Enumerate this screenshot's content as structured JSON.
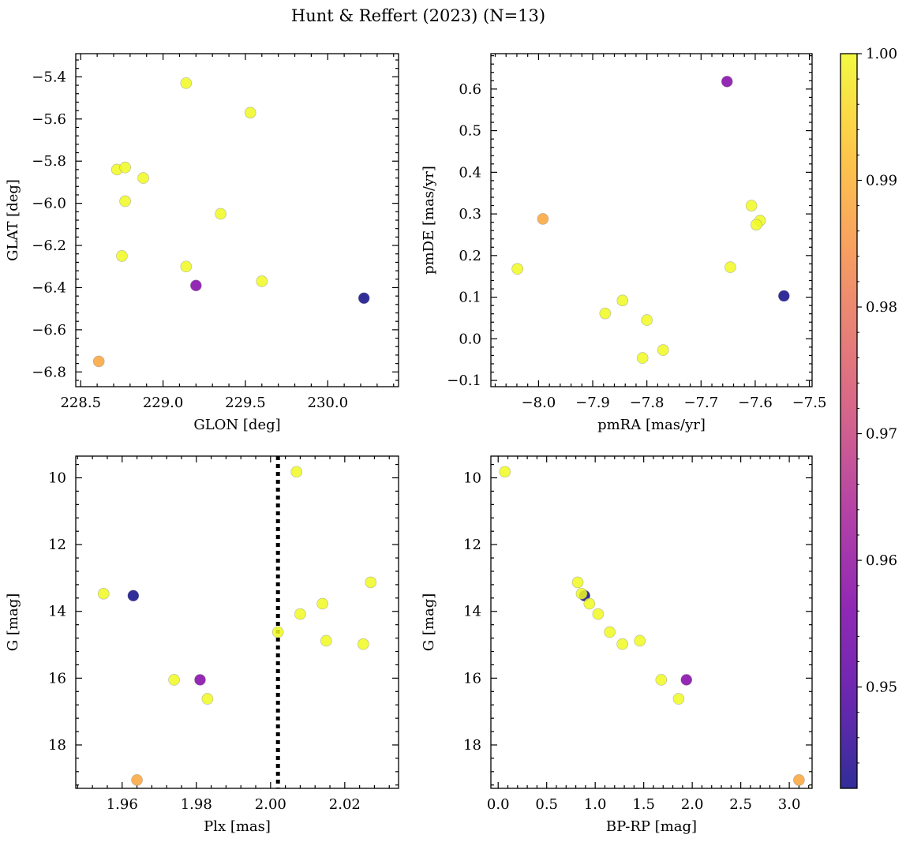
{
  "figure": {
    "title": "Hunt & Reffert (2023) (N=13)"
  },
  "colorbar": {
    "vmin": 0.942,
    "vmax": 1.0,
    "ticks": [
      0.95,
      0.96,
      0.97,
      0.98,
      0.99,
      1.0
    ],
    "tick_labels": [
      "0.95",
      "0.96",
      "0.97",
      "0.98",
      "0.99",
      "1.00"
    ],
    "colormap": "plasma"
  },
  "chart_data": [
    {
      "id": "glon-glat",
      "type": "scatter",
      "xlabel": "GLON [deg]",
      "ylabel": "GLAT [deg]",
      "xlim": [
        228.47,
        230.43
      ],
      "ylim": [
        -6.87,
        -5.29
      ],
      "y_inverted": false,
      "xticks": [
        228.5,
        229.0,
        229.5,
        230.0
      ],
      "xtick_labels": [
        "228.5",
        "229.0",
        "229.5",
        "230.0"
      ],
      "yticks": [
        -6.8,
        -6.6,
        -6.4,
        -6.2,
        -6.0,
        -5.8,
        -5.6,
        -5.4
      ],
      "ytick_labels": [
        "−6.8",
        "−6.6",
        "−6.4",
        "−6.2",
        "−6.0",
        "−5.8",
        "−5.6",
        "−5.4"
      ],
      "points": [
        {
          "x": 229.14,
          "y": -5.43,
          "c": 1.0
        },
        {
          "x": 229.53,
          "y": -5.57,
          "c": 1.0
        },
        {
          "x": 228.72,
          "y": -5.84,
          "c": 1.0
        },
        {
          "x": 228.77,
          "y": -5.83,
          "c": 1.0
        },
        {
          "x": 228.88,
          "y": -5.88,
          "c": 1.0
        },
        {
          "x": 228.77,
          "y": -5.99,
          "c": 1.0
        },
        {
          "x": 229.35,
          "y": -6.05,
          "c": 1.0
        },
        {
          "x": 228.75,
          "y": -6.25,
          "c": 1.0
        },
        {
          "x": 229.14,
          "y": -6.3,
          "c": 1.0
        },
        {
          "x": 229.6,
          "y": -6.37,
          "c": 1.0
        },
        {
          "x": 229.2,
          "y": -6.39,
          "c": 0.957
        },
        {
          "x": 230.22,
          "y": -6.45,
          "c": 0.942
        },
        {
          "x": 228.61,
          "y": -6.75,
          "c": 0.988
        }
      ]
    },
    {
      "id": "pmra-pmde",
      "type": "scatter",
      "xlabel": "pmRA [mas/yr]",
      "ylabel": "pmDE [mas/yr]",
      "xlim": [
        -8.088,
        -7.495
      ],
      "ylim": [
        -0.115,
        0.685
      ],
      "y_inverted": false,
      "xticks": [
        -8.0,
        -7.9,
        -7.8,
        -7.7,
        -7.6,
        -7.5
      ],
      "xtick_labels": [
        "−8.0",
        "−7.9",
        "−7.8",
        "−7.7",
        "−7.6",
        "−7.5"
      ],
      "yticks": [
        -0.1,
        0.0,
        0.1,
        0.2,
        0.3,
        0.4,
        0.5,
        0.6
      ],
      "ytick_labels": [
        "−0.1",
        "0.0",
        "0.1",
        "0.2",
        "0.3",
        "0.4",
        "0.5",
        "0.6"
      ],
      "points": [
        {
          "x": -7.652,
          "y": 0.618,
          "c": 0.957
        },
        {
          "x": -7.607,
          "y": 0.32,
          "c": 1.0
        },
        {
          "x": -7.591,
          "y": 0.284,
          "c": 1.0
        },
        {
          "x": -7.598,
          "y": 0.274,
          "c": 1.0
        },
        {
          "x": -7.992,
          "y": 0.288,
          "c": 0.988
        },
        {
          "x": -8.039,
          "y": 0.168,
          "c": 1.0
        },
        {
          "x": -7.646,
          "y": 0.172,
          "c": 1.0
        },
        {
          "x": -7.547,
          "y": 0.103,
          "c": 0.942
        },
        {
          "x": -7.845,
          "y": 0.092,
          "c": 1.0
        },
        {
          "x": -7.877,
          "y": 0.061,
          "c": 1.0
        },
        {
          "x": -7.8,
          "y": 0.045,
          "c": 1.0
        },
        {
          "x": -7.77,
          "y": -0.027,
          "c": 1.0
        },
        {
          "x": -7.808,
          "y": -0.046,
          "c": 1.0
        }
      ]
    },
    {
      "id": "plx-g",
      "type": "scatter",
      "xlabel": "Plx [mas]",
      "ylabel": "G [mag]",
      "xlim": [
        1.9475,
        2.0345
      ],
      "ylim": [
        19.3,
        9.35
      ],
      "y_inverted": true,
      "xticks": [
        1.96,
        1.98,
        2.0,
        2.02
      ],
      "xtick_labels": [
        "1.96",
        "1.98",
        "2.00",
        "2.02"
      ],
      "yticks": [
        10,
        12,
        14,
        16,
        18
      ],
      "ytick_labels": [
        "10",
        "12",
        "14",
        "16",
        "18"
      ],
      "vline": {
        "x": 2.002,
        "style": "dotted"
      },
      "points": [
        {
          "x": 2.007,
          "y": 9.82,
          "c": 1.0
        },
        {
          "x": 2.027,
          "y": 13.13,
          "c": 1.0
        },
        {
          "x": 1.955,
          "y": 13.47,
          "c": 1.0
        },
        {
          "x": 1.963,
          "y": 13.53,
          "c": 0.942
        },
        {
          "x": 2.014,
          "y": 13.77,
          "c": 1.0
        },
        {
          "x": 2.008,
          "y": 14.08,
          "c": 1.0
        },
        {
          "x": 2.002,
          "y": 14.62,
          "c": 1.0
        },
        {
          "x": 2.015,
          "y": 14.88,
          "c": 1.0
        },
        {
          "x": 2.025,
          "y": 14.98,
          "c": 1.0
        },
        {
          "x": 1.974,
          "y": 16.05,
          "c": 1.0
        },
        {
          "x": 1.981,
          "y": 16.05,
          "c": 0.957
        },
        {
          "x": 1.983,
          "y": 16.62,
          "c": 1.0
        },
        {
          "x": 1.964,
          "y": 19.05,
          "c": 0.988
        }
      ]
    },
    {
      "id": "bprp-g",
      "type": "scatter",
      "xlabel": "BP-RP [mag]",
      "ylabel": "G [mag]",
      "xlim": [
        -0.075,
        3.235
      ],
      "ylim": [
        19.3,
        9.35
      ],
      "y_inverted": true,
      "xticks": [
        0.0,
        0.5,
        1.0,
        1.5,
        2.0,
        2.5,
        3.0
      ],
      "xtick_labels": [
        "0.0",
        "0.5",
        "1.0",
        "1.5",
        "2.0",
        "2.5",
        "3.0"
      ],
      "yticks": [
        10,
        12,
        14,
        16,
        18
      ],
      "ytick_labels": [
        "10",
        "12",
        "14",
        "16",
        "18"
      ],
      "points": [
        {
          "x": 0.07,
          "y": 9.82,
          "c": 1.0
        },
        {
          "x": 0.82,
          "y": 13.13,
          "c": 1.0
        },
        {
          "x": 0.89,
          "y": 13.53,
          "c": 0.942
        },
        {
          "x": 0.86,
          "y": 13.47,
          "c": 1.0
        },
        {
          "x": 0.94,
          "y": 13.77,
          "c": 1.0
        },
        {
          "x": 1.03,
          "y": 14.08,
          "c": 1.0
        },
        {
          "x": 1.15,
          "y": 14.62,
          "c": 1.0
        },
        {
          "x": 1.46,
          "y": 14.88,
          "c": 1.0
        },
        {
          "x": 1.28,
          "y": 14.98,
          "c": 1.0
        },
        {
          "x": 1.68,
          "y": 16.05,
          "c": 1.0
        },
        {
          "x": 1.94,
          "y": 16.05,
          "c": 0.957
        },
        {
          "x": 1.86,
          "y": 16.62,
          "c": 1.0
        },
        {
          "x": 3.1,
          "y": 19.05,
          "c": 0.988
        }
      ]
    }
  ]
}
